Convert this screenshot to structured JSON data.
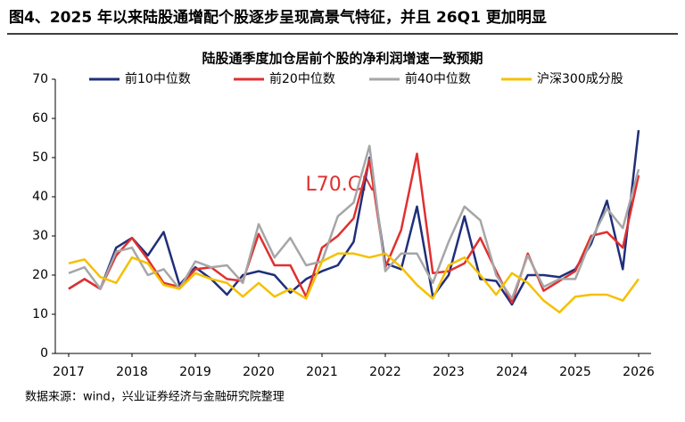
{
  "chart_data": {
    "type": "line",
    "page_title": "图4、2025 年以来陆股通增配个股逐步呈现高景气特征，并且 26Q1 更加明显",
    "title": "陆股通季度加仓居前个股的净利润增速一致预期",
    "watermark": "L70.CN",
    "source": "数据来源：wind，兴业证券经济与金融研究院整理",
    "x": [
      2017,
      2017.25,
      2017.5,
      2017.75,
      2018,
      2018.25,
      2018.5,
      2018.75,
      2019,
      2019.25,
      2019.5,
      2019.75,
      2020,
      2020.25,
      2020.5,
      2020.75,
      2021,
      2021.25,
      2021.5,
      2021.75,
      2022,
      2022.25,
      2022.5,
      2022.75,
      2023,
      2023.25,
      2023.5,
      2023.75,
      2024,
      2024.25,
      2024.5,
      2024.75,
      2025,
      2025.25,
      2025.5,
      2025.75,
      2026
    ],
    "xlim": [
      2017,
      2026
    ],
    "xticks": [
      2017,
      2018,
      2019,
      2020,
      2021,
      2022,
      2023,
      2024,
      2025,
      2026
    ],
    "ylim": [
      0,
      70
    ],
    "yticks": [
      0,
      10,
      20,
      30,
      40,
      50,
      60,
      70
    ],
    "grid": false,
    "legend": "top",
    "series": [
      {
        "name": "前10中位数",
        "color": "#1f2f7a",
        "values": [
          16.5,
          19,
          16.5,
          27,
          29.5,
          25,
          31,
          17.5,
          22,
          19,
          15,
          20,
          21,
          20,
          15.5,
          19,
          21,
          22.5,
          28.5,
          50,
          23,
          21.5,
          37.5,
          14.5,
          20,
          35,
          19,
          18.5,
          12.5,
          20,
          20,
          19.5,
          21.5,
          28,
          39,
          21.5,
          57
        ]
      },
      {
        "name": "前20中位数",
        "color": "#e03030",
        "values": [
          16.5,
          19,
          16.5,
          25,
          29.5,
          24,
          18,
          17,
          21.5,
          22,
          19,
          18.5,
          30.5,
          22.5,
          22.5,
          14.5,
          27,
          30,
          34.5,
          49.5,
          22,
          31.5,
          51,
          20.5,
          21,
          23,
          29.5,
          21,
          13,
          25.5,
          16,
          18.5,
          21,
          30,
          31,
          27,
          45.5
        ]
      },
      {
        "name": "前40中位数",
        "color": "#a6a6a6",
        "values": [
          20.5,
          22,
          16.5,
          26,
          27,
          20,
          21.5,
          16.5,
          23.5,
          22,
          22.5,
          18,
          33,
          24.5,
          29.5,
          22.5,
          23.5,
          35,
          38.5,
          53,
          21,
          25.5,
          25.5,
          18,
          28.5,
          37.5,
          34,
          20,
          14,
          25,
          17,
          19,
          19,
          29,
          37,
          32,
          47
        ]
      },
      {
        "name": "沪深300成分股",
        "color": "#f5c000",
        "values": [
          23,
          24,
          19.5,
          18,
          24.5,
          23,
          17.5,
          16.5,
          20.5,
          19,
          18,
          14.5,
          18,
          14.5,
          16.5,
          14,
          23.5,
          25.5,
          25.5,
          24.5,
          25.5,
          22,
          17.5,
          14,
          22.5,
          24.5,
          20,
          15,
          20.5,
          18,
          13.5,
          10.5,
          14.5,
          15,
          15,
          13.5,
          19
        ]
      }
    ]
  }
}
